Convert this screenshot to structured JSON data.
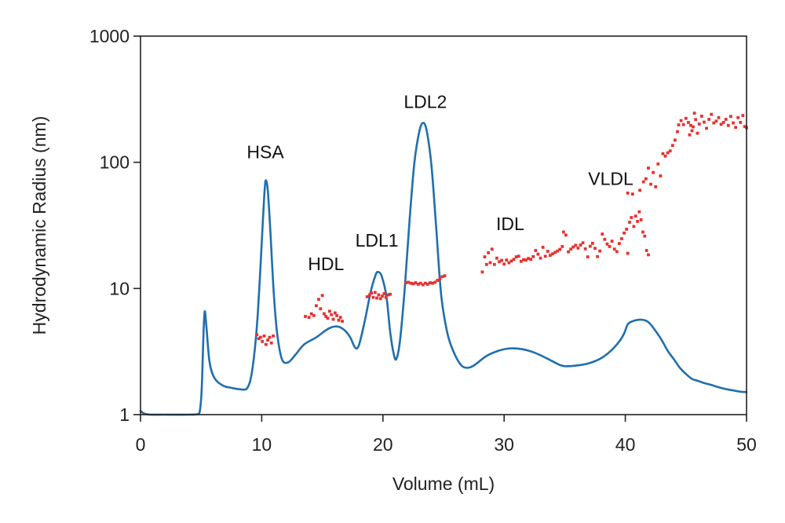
{
  "chart_data": {
    "type": "line",
    "title": "",
    "xlabel": "Volume (mL)",
    "ylabel": "Hydrodynamic Radius (nm)",
    "xlim": [
      0,
      50
    ],
    "ylim": [
      1,
      1000
    ],
    "yscale": "log",
    "grid": false,
    "legend": "none",
    "x_ticks": [
      0,
      10,
      20,
      30,
      40,
      50
    ],
    "x_tick_labels": [
      "0",
      "10",
      "20",
      "30",
      "40",
      "50"
    ],
    "y_ticks": [
      1,
      10,
      100,
      1000
    ],
    "y_tick_labels": [
      "1",
      "10",
      "100",
      "1000"
    ],
    "colors": {
      "trace": "#1f6fae",
      "points": "#e8312f",
      "axis": "#222222"
    },
    "annotations": [
      {
        "name": "hsa",
        "text": "HSA",
        "x": 10.3,
        "y": 108
      },
      {
        "name": "hdl",
        "text": "HDL",
        "x": 15.3,
        "y": 14
      },
      {
        "name": "ldl1",
        "text": "LDL1",
        "x": 19.5,
        "y": 21.5
      },
      {
        "name": "ldl2",
        "text": "LDL2",
        "x": 23.5,
        "y": 270
      },
      {
        "name": "idl",
        "text": "IDL",
        "x": 30.5,
        "y": 29
      },
      {
        "name": "vldl",
        "text": "VLDL",
        "x": 38.8,
        "y": 66
      }
    ],
    "series": [
      {
        "name": "elution-trace",
        "kind": "line",
        "points": [
          [
            0,
            1.07
          ],
          [
            0.3,
            1.02
          ],
          [
            0.8,
            1.0
          ],
          [
            2,
            1.0
          ],
          [
            4,
            1.0
          ],
          [
            4.7,
            1.01
          ],
          [
            4.9,
            1.08
          ],
          [
            5.05,
            1.6
          ],
          [
            5.2,
            4.5
          ],
          [
            5.3,
            6.6
          ],
          [
            5.45,
            4.8
          ],
          [
            5.7,
            2.6
          ],
          [
            6.1,
            1.95
          ],
          [
            6.8,
            1.7
          ],
          [
            7.5,
            1.63
          ],
          [
            8.2,
            1.59
          ],
          [
            8.8,
            1.62
          ],
          [
            9.2,
            2.2
          ],
          [
            9.6,
            5.0
          ],
          [
            9.9,
            15
          ],
          [
            10.1,
            35
          ],
          [
            10.25,
            62
          ],
          [
            10.35,
            72
          ],
          [
            10.5,
            60
          ],
          [
            10.7,
            30
          ],
          [
            11.0,
            9
          ],
          [
            11.3,
            4.2
          ],
          [
            11.7,
            2.7
          ],
          [
            12.2,
            2.6
          ],
          [
            12.8,
            3.0
          ],
          [
            13.5,
            3.6
          ],
          [
            14.5,
            4.1
          ],
          [
            15.5,
            4.8
          ],
          [
            16.2,
            5.0
          ],
          [
            16.8,
            4.7
          ],
          [
            17.3,
            4.1
          ],
          [
            17.7,
            3.4
          ],
          [
            18.0,
            3.5
          ],
          [
            18.5,
            5.5
          ],
          [
            19.0,
            9.5
          ],
          [
            19.4,
            12.8
          ],
          [
            19.6,
            13.5
          ],
          [
            19.9,
            12.5
          ],
          [
            20.3,
            8.5
          ],
          [
            20.6,
            4.5
          ],
          [
            20.9,
            3.0
          ],
          [
            21.1,
            2.75
          ],
          [
            21.4,
            3.8
          ],
          [
            21.8,
            10
          ],
          [
            22.2,
            35
          ],
          [
            22.6,
            100
          ],
          [
            23.0,
            175
          ],
          [
            23.3,
            205
          ],
          [
            23.6,
            180
          ],
          [
            24.0,
            95
          ],
          [
            24.4,
            30
          ],
          [
            24.8,
            9
          ],
          [
            25.3,
            4.5
          ],
          [
            25.8,
            3.2
          ],
          [
            26.4,
            2.5
          ],
          [
            26.9,
            2.35
          ],
          [
            27.5,
            2.45
          ],
          [
            28.5,
            2.9
          ],
          [
            29.5,
            3.2
          ],
          [
            30.5,
            3.35
          ],
          [
            31.5,
            3.3
          ],
          [
            32.5,
            3.1
          ],
          [
            33.5,
            2.8
          ],
          [
            34.5,
            2.5
          ],
          [
            35.0,
            2.42
          ],
          [
            36.0,
            2.45
          ],
          [
            37.0,
            2.55
          ],
          [
            38.0,
            2.8
          ],
          [
            38.8,
            3.2
          ],
          [
            39.5,
            3.8
          ],
          [
            39.9,
            4.4
          ],
          [
            40.2,
            5.2
          ],
          [
            40.6,
            5.5
          ],
          [
            41.1,
            5.65
          ],
          [
            41.6,
            5.6
          ],
          [
            42.0,
            5.3
          ],
          [
            42.5,
            4.6
          ],
          [
            43.0,
            3.9
          ],
          [
            43.5,
            3.2
          ],
          [
            44.0,
            2.75
          ],
          [
            44.5,
            2.35
          ],
          [
            45.0,
            2.1
          ],
          [
            45.5,
            1.92
          ],
          [
            46.0,
            1.85
          ],
          [
            46.5,
            1.78
          ],
          [
            47.0,
            1.73
          ],
          [
            47.5,
            1.67
          ],
          [
            48.0,
            1.62
          ],
          [
            48.5,
            1.58
          ],
          [
            49.0,
            1.55
          ],
          [
            49.5,
            1.52
          ],
          [
            50.0,
            1.51
          ]
        ]
      },
      {
        "name": "radius-measurements",
        "kind": "scatter",
        "points": [
          [
            9.6,
            4.3
          ],
          [
            9.75,
            4.0
          ],
          [
            9.9,
            4.1
          ],
          [
            10.05,
            3.8
          ],
          [
            10.2,
            4.2
          ],
          [
            10.35,
            3.6
          ],
          [
            10.5,
            3.9
          ],
          [
            10.65,
            4.1
          ],
          [
            10.8,
            3.7
          ],
          [
            10.95,
            4.2
          ],
          [
            13.6,
            6.0
          ],
          [
            13.9,
            5.9
          ],
          [
            14.1,
            6.3
          ],
          [
            14.3,
            6.1
          ],
          [
            14.5,
            7.3
          ],
          [
            14.7,
            8.2
          ],
          [
            14.85,
            6.9
          ],
          [
            15.0,
            8.8
          ],
          [
            15.15,
            6.3
          ],
          [
            15.3,
            6.0
          ],
          [
            15.45,
            5.8
          ],
          [
            15.6,
            6.6
          ],
          [
            15.75,
            6.2
          ],
          [
            15.9,
            5.7
          ],
          [
            16.05,
            6.4
          ],
          [
            16.2,
            6.1
          ],
          [
            16.35,
            5.6
          ],
          [
            16.5,
            5.9
          ],
          [
            16.65,
            5.5
          ],
          [
            18.7,
            8.6
          ],
          [
            18.9,
            8.9
          ],
          [
            19.05,
            9.2
          ],
          [
            19.2,
            8.5
          ],
          [
            19.35,
            9.3
          ],
          [
            19.5,
            8.4
          ],
          [
            19.65,
            8.9
          ],
          [
            19.8,
            8.3
          ],
          [
            19.95,
            8.7
          ],
          [
            20.1,
            9.1
          ],
          [
            20.25,
            8.5
          ],
          [
            20.45,
            8.9
          ],
          [
            20.6,
            9.0
          ],
          [
            21.9,
            11.1
          ],
          [
            22.1,
            11.2
          ],
          [
            22.3,
            11.0
          ],
          [
            22.5,
            10.9
          ],
          [
            22.7,
            11.1
          ],
          [
            22.9,
            10.8
          ],
          [
            23.1,
            11.0
          ],
          [
            23.3,
            10.7
          ],
          [
            23.5,
            11.0
          ],
          [
            23.7,
            10.8
          ],
          [
            23.9,
            11.1
          ],
          [
            24.1,
            11.0
          ],
          [
            24.3,
            11.2
          ],
          [
            24.5,
            11.6
          ],
          [
            24.7,
            11.9
          ],
          [
            24.9,
            12.4
          ],
          [
            25.1,
            12.6
          ],
          [
            28.2,
            13.5
          ],
          [
            28.4,
            17.8
          ],
          [
            28.55,
            15.5
          ],
          [
            28.7,
            19.2
          ],
          [
            28.85,
            16.0
          ],
          [
            29.0,
            20.5
          ],
          [
            29.2,
            15.5
          ],
          [
            29.4,
            17.4
          ],
          [
            29.6,
            16.3
          ],
          [
            29.8,
            16.7
          ],
          [
            30.0,
            15.6
          ],
          [
            30.2,
            16.8
          ],
          [
            30.4,
            16.0
          ],
          [
            30.6,
            16.5
          ],
          [
            30.8,
            17.0
          ],
          [
            31.0,
            17.8
          ],
          [
            31.2,
            18.0
          ],
          [
            31.4,
            16.4
          ],
          [
            31.6,
            16.9
          ],
          [
            31.8,
            16.8
          ],
          [
            32.0,
            17.3
          ],
          [
            32.2,
            17.0
          ],
          [
            32.4,
            17.9
          ],
          [
            32.6,
            20.0
          ],
          [
            32.8,
            18.7
          ],
          [
            33.0,
            17.4
          ],
          [
            33.2,
            21.2
          ],
          [
            33.4,
            18.0
          ],
          [
            33.6,
            19.7
          ],
          [
            33.8,
            18.3
          ],
          [
            34.0,
            18.8
          ],
          [
            34.2,
            19.3
          ],
          [
            34.4,
            19.8
          ],
          [
            34.6,
            20.4
          ],
          [
            34.8,
            21.5
          ],
          [
            34.9,
            28.0
          ],
          [
            35.1,
            26.5
          ],
          [
            35.3,
            19.5
          ],
          [
            35.5,
            20.5
          ],
          [
            35.7,
            21.3
          ],
          [
            35.9,
            22.0
          ],
          [
            36.1,
            20.9
          ],
          [
            36.3,
            22.1
          ],
          [
            36.5,
            23.0
          ],
          [
            36.7,
            20.6
          ],
          [
            36.9,
            17.8
          ],
          [
            37.1,
            21.6
          ],
          [
            37.3,
            22.8
          ],
          [
            37.5,
            20.8
          ],
          [
            37.7,
            17.9
          ],
          [
            37.9,
            19.8
          ],
          [
            38.1,
            27.0
          ],
          [
            38.3,
            24.5
          ],
          [
            38.5,
            22.5
          ],
          [
            38.7,
            21.5
          ],
          [
            38.9,
            23.7
          ],
          [
            39.1,
            20.5
          ],
          [
            39.3,
            19.6
          ],
          [
            39.5,
            22.7
          ],
          [
            39.7,
            24.8
          ],
          [
            39.9,
            27.5
          ],
          [
            40.1,
            29.5
          ],
          [
            40.2,
            19.0
          ],
          [
            40.35,
            33.5
          ],
          [
            40.5,
            36.5
          ],
          [
            40.7,
            31.0
          ],
          [
            40.85,
            37.5
          ],
          [
            41.0,
            34.0
          ],
          [
            41.15,
            40.5
          ],
          [
            41.3,
            35.0
          ],
          [
            41.45,
            28.0
          ],
          [
            41.6,
            26.0
          ],
          [
            41.75,
            20.0
          ],
          [
            41.9,
            18.5
          ],
          [
            40.2,
            57.0
          ],
          [
            40.6,
            56.0
          ],
          [
            41.2,
            60.0
          ],
          [
            41.5,
            70.0
          ],
          [
            41.7,
            74.0
          ],
          [
            41.9,
            90.0
          ],
          [
            42.1,
            67.0
          ],
          [
            42.3,
            83.0
          ],
          [
            42.5,
            64.0
          ],
          [
            42.7,
            97.0
          ],
          [
            42.9,
            78.0
          ],
          [
            43.1,
            117.0
          ],
          [
            43.3,
            112.0
          ],
          [
            43.5,
            119.0
          ],
          [
            43.7,
            123.0
          ],
          [
            43.9,
            136.0
          ],
          [
            44.1,
            150.0
          ],
          [
            44.3,
            175.0
          ],
          [
            44.4,
            198.0
          ],
          [
            44.6,
            214.0
          ],
          [
            44.8,
            199.0
          ],
          [
            45.0,
            223.0
          ],
          [
            45.2,
            207.0
          ],
          [
            45.3,
            165.0
          ],
          [
            45.4,
            196.0
          ],
          [
            45.5,
            178.0
          ],
          [
            45.6,
            191.0
          ],
          [
            45.7,
            245.0
          ],
          [
            45.8,
            218.0
          ],
          [
            45.95,
            170.0
          ],
          [
            46.1,
            201.0
          ],
          [
            46.3,
            232.0
          ],
          [
            46.5,
            208.0
          ],
          [
            46.7,
            186.0
          ],
          [
            46.9,
            219.0
          ],
          [
            47.1,
            240.0
          ],
          [
            47.3,
            205.0
          ],
          [
            47.5,
            212.0
          ],
          [
            47.7,
            226.0
          ],
          [
            47.9,
            200.0
          ],
          [
            48.1,
            207.0
          ],
          [
            48.3,
            219.0
          ],
          [
            48.5,
            196.0
          ],
          [
            48.7,
            231.0
          ],
          [
            48.9,
            205.0
          ],
          [
            49.1,
            189.0
          ],
          [
            49.3,
            226.0
          ],
          [
            49.5,
            207.0
          ],
          [
            49.7,
            235.0
          ],
          [
            49.85,
            192.0
          ],
          [
            50.0,
            188.0
          ]
        ]
      }
    ]
  }
}
